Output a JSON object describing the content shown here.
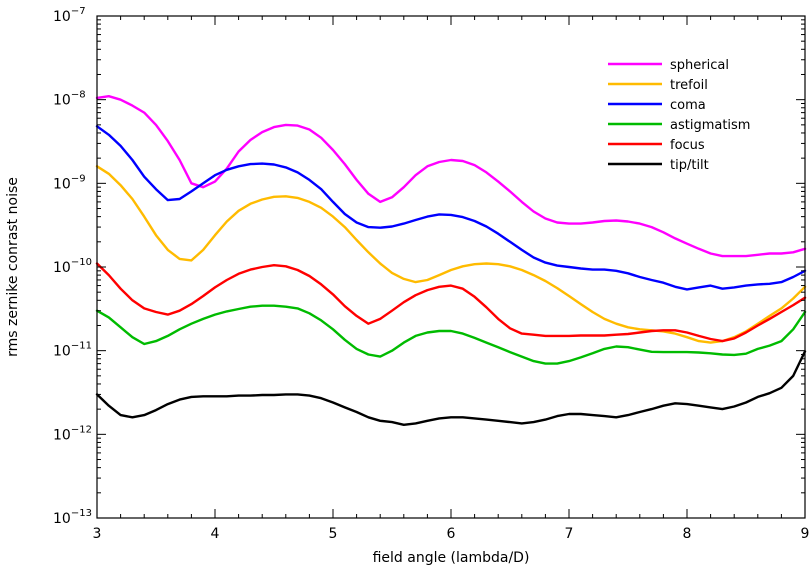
{
  "chart_data": {
    "type": "line",
    "title": "",
    "xlabel": "field angle (lambda/D)",
    "ylabel": "rms zernike conrast noise",
    "xlim": [
      3,
      9
    ],
    "ylim_log10": [
      -13,
      -7
    ],
    "yscale": "log",
    "x_ticks": [
      3,
      4,
      5,
      6,
      7,
      8,
      9
    ],
    "y_ticks": [
      {
        "exp": -13,
        "base": "10",
        "power": "−13"
      },
      {
        "exp": -12,
        "base": "10",
        "power": "−12"
      },
      {
        "exp": -11,
        "base": "10",
        "power": "−11"
      },
      {
        "exp": -10,
        "base": "10",
        "power": "−10"
      },
      {
        "exp": -9,
        "base": "10",
        "power": "−9"
      },
      {
        "exp": -8,
        "base": "10",
        "power": "−8"
      },
      {
        "exp": -7,
        "base": "10",
        "power": "−7"
      }
    ],
    "grid": false,
    "legend_position": "top-right",
    "x": [
      3.0,
      3.1,
      3.2,
      3.3,
      3.4,
      3.5,
      3.6,
      3.7,
      3.8,
      3.9,
      4.0,
      4.1,
      4.2,
      4.3,
      4.4,
      4.5,
      4.6,
      4.7,
      4.8,
      4.9,
      5.0,
      5.1,
      5.2,
      5.3,
      5.4,
      5.5,
      5.6,
      5.7,
      5.8,
      5.9,
      6.0,
      6.1,
      6.2,
      6.3,
      6.4,
      6.5,
      6.6,
      6.7,
      6.8,
      6.9,
      7.0,
      7.1,
      7.2,
      7.3,
      7.4,
      7.5,
      7.6,
      7.7,
      7.8,
      7.9,
      8.0,
      8.1,
      8.2,
      8.3,
      8.4,
      8.5,
      8.6,
      8.7,
      8.8,
      8.9,
      9.0
    ],
    "series": [
      {
        "name": "spherical",
        "color": "#ff00ff",
        "values": [
          1.05e-08,
          1.1e-08,
          1e-08,
          8.5e-09,
          7e-09,
          5e-09,
          3.2e-09,
          1.9e-09,
          1e-09,
          9e-10,
          1.05e-09,
          1.5e-09,
          2.4e-09,
          3.3e-09,
          4.1e-09,
          4.7e-09,
          5e-09,
          4.9e-09,
          4.4e-09,
          3.5e-09,
          2.5e-09,
          1.7e-09,
          1.1e-09,
          7.5e-10,
          6e-10,
          6.8e-10,
          9e-10,
          1.25e-09,
          1.6e-09,
          1.8e-09,
          1.9e-09,
          1.85e-09,
          1.65e-09,
          1.35e-09,
          1.05e-09,
          8e-10,
          6e-10,
          4.6e-10,
          3.8e-10,
          3.4e-10,
          3.3e-10,
          3.3e-10,
          3.4e-10,
          3.55e-10,
          3.6e-10,
          3.5e-10,
          3.3e-10,
          3e-10,
          2.6e-10,
          2.2e-10,
          1.9e-10,
          1.65e-10,
          1.45e-10,
          1.35e-10,
          1.35e-10,
          1.35e-10,
          1.4e-10,
          1.45e-10,
          1.45e-10,
          1.5e-10,
          1.65e-10
        ]
      },
      {
        "name": "trefoil",
        "color": "#ffbb00",
        "values": [
          1.6e-09,
          1.3e-09,
          9.5e-10,
          6.5e-10,
          4e-10,
          2.4e-10,
          1.6e-10,
          1.25e-10,
          1.2e-10,
          1.6e-10,
          2.4e-10,
          3.5e-10,
          4.7e-10,
          5.7e-10,
          6.4e-10,
          6.9e-10,
          7e-10,
          6.7e-10,
          6e-10,
          5.1e-10,
          4e-10,
          3e-10,
          2.1e-10,
          1.5e-10,
          1.1e-10,
          8.5e-11,
          7.2e-11,
          6.6e-11,
          7e-11,
          8e-11,
          9.2e-11,
          1.02e-10,
          1.08e-10,
          1.1e-10,
          1.08e-10,
          1.02e-10,
          9.2e-11,
          8e-11,
          6.8e-11,
          5.6e-11,
          4.5e-11,
          3.6e-11,
          2.9e-11,
          2.4e-11,
          2.1e-11,
          1.9e-11,
          1.8e-11,
          1.75e-11,
          1.7e-11,
          1.6e-11,
          1.45e-11,
          1.3e-11,
          1.25e-11,
          1.3e-11,
          1.45e-11,
          1.7e-11,
          2.1e-11,
          2.6e-11,
          3.2e-11,
          4.2e-11,
          5.8e-11
        ]
      },
      {
        "name": "coma",
        "color": "#0000ff",
        "values": [
          4.8e-09,
          3.8e-09,
          2.8e-09,
          1.9e-09,
          1.2e-09,
          8.5e-10,
          6.3e-10,
          6.5e-10,
          8e-10,
          1e-09,
          1.25e-09,
          1.45e-09,
          1.6e-09,
          1.7e-09,
          1.72e-09,
          1.68e-09,
          1.55e-09,
          1.35e-09,
          1.1e-09,
          8.5e-10,
          6e-10,
          4.3e-10,
          3.4e-10,
          3e-10,
          2.95e-10,
          3.05e-10,
          3.3e-10,
          3.65e-10,
          4e-10,
          4.25e-10,
          4.2e-10,
          3.95e-10,
          3.55e-10,
          3.05e-10,
          2.5e-10,
          2e-10,
          1.6e-10,
          1.3e-10,
          1.13e-10,
          1.04e-10,
          1e-10,
          9.6e-11,
          9.3e-11,
          9.3e-11,
          9e-11,
          8.4e-11,
          7.6e-11,
          7e-11,
          6.5e-11,
          5.8e-11,
          5.4e-11,
          5.7e-11,
          6e-11,
          5.5e-11,
          5.7e-11,
          6e-11,
          6.2e-11,
          6.3e-11,
          6.6e-11,
          7.6e-11,
          9e-11
        ]
      },
      {
        "name": "astigmatism",
        "color": "#00bb00",
        "values": [
          3e-11,
          2.5e-11,
          1.9e-11,
          1.45e-11,
          1.2e-11,
          1.3e-11,
          1.5e-11,
          1.8e-11,
          2.1e-11,
          2.4e-11,
          2.7e-11,
          2.95e-11,
          3.15e-11,
          3.35e-11,
          3.45e-11,
          3.45e-11,
          3.35e-11,
          3.2e-11,
          2.8e-11,
          2.3e-11,
          1.8e-11,
          1.35e-11,
          1.05e-11,
          9e-12,
          8.5e-12,
          1e-11,
          1.25e-11,
          1.5e-11,
          1.65e-11,
          1.72e-11,
          1.72e-11,
          1.6e-11,
          1.42e-11,
          1.25e-11,
          1.1e-11,
          9.6e-12,
          8.5e-12,
          7.5e-12,
          7e-12,
          7e-12,
          7.5e-12,
          8.3e-12,
          9.3e-12,
          1.05e-11,
          1.12e-11,
          1.1e-11,
          1.03e-11,
          9.7e-12,
          9.6e-12,
          9.6e-12,
          9.6e-12,
          9.5e-12,
          9.3e-12,
          9e-12,
          8.9e-12,
          9.2e-12,
          1.05e-11,
          1.15e-11,
          1.3e-11,
          1.8e-11,
          2.9e-11
        ]
      },
      {
        "name": "focus",
        "color": "#ff0000",
        "values": [
          1.1e-10,
          8e-11,
          5.5e-11,
          4e-11,
          3.2e-11,
          2.9e-11,
          2.7e-11,
          3e-11,
          3.6e-11,
          4.5e-11,
          5.7e-11,
          7e-11,
          8.3e-11,
          9.3e-11,
          1e-10,
          1.05e-10,
          1.02e-10,
          9.2e-11,
          7.8e-11,
          6.2e-11,
          4.7e-11,
          3.4e-11,
          2.6e-11,
          2.1e-11,
          2.4e-11,
          3e-11,
          3.8e-11,
          4.6e-11,
          5.3e-11,
          5.8e-11,
          6e-11,
          5.5e-11,
          4.4e-11,
          3.3e-11,
          2.4e-11,
          1.85e-11,
          1.6e-11,
          1.55e-11,
          1.5e-11,
          1.5e-11,
          1.5e-11,
          1.52e-11,
          1.52e-11,
          1.52e-11,
          1.55e-11,
          1.58e-11,
          1.65e-11,
          1.72e-11,
          1.75e-11,
          1.75e-11,
          1.65e-11,
          1.5e-11,
          1.38e-11,
          1.3e-11,
          1.4e-11,
          1.65e-11,
          2e-11,
          2.4e-11,
          2.9e-11,
          3.5e-11,
          4.3e-11
        ]
      },
      {
        "name": "tip/tilt",
        "color": "#000000",
        "values": [
          3e-12,
          2.2e-12,
          1.7e-12,
          1.6e-12,
          1.7e-12,
          1.95e-12,
          2.3e-12,
          2.6e-12,
          2.8e-12,
          2.85e-12,
          2.85e-12,
          2.85e-12,
          2.9e-12,
          2.9e-12,
          2.95e-12,
          2.95e-12,
          3e-12,
          3e-12,
          2.9e-12,
          2.7e-12,
          2.4e-12,
          2.1e-12,
          1.85e-12,
          1.6e-12,
          1.45e-12,
          1.4e-12,
          1.3e-12,
          1.35e-12,
          1.45e-12,
          1.55e-12,
          1.6e-12,
          1.6e-12,
          1.55e-12,
          1.5e-12,
          1.45e-12,
          1.4e-12,
          1.35e-12,
          1.4e-12,
          1.5e-12,
          1.65e-12,
          1.75e-12,
          1.75e-12,
          1.7e-12,
          1.65e-12,
          1.6e-12,
          1.7e-12,
          1.85e-12,
          2e-12,
          2.2e-12,
          2.35e-12,
          2.3e-12,
          2.2e-12,
          2.1e-12,
          2e-12,
          2.15e-12,
          2.4e-12,
          2.8e-12,
          3.1e-12,
          3.6e-12,
          5e-12,
          9.8e-12
        ]
      }
    ]
  }
}
